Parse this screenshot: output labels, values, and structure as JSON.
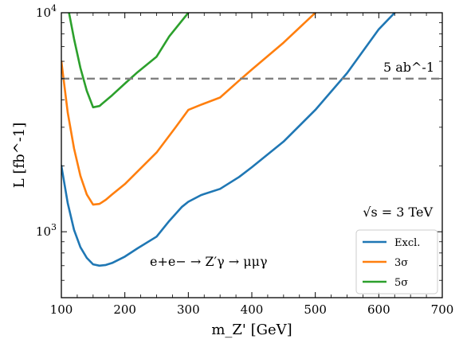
{
  "chart_data": {
    "type": "line",
    "x_label": "m_Z' [GeV]",
    "y_label": "L [fb^-1]",
    "x_range": [
      100,
      700
    ],
    "y_range": [
      500,
      10000
    ],
    "y_scale": "log",
    "x_ticks": [
      "100",
      "200",
      "300",
      "400",
      "500",
      "600",
      "700"
    ],
    "y_ticks": [
      {
        "value": 1000,
        "label": "10^3"
      },
      {
        "value": 10000,
        "label": "10^4"
      }
    ],
    "grid": false,
    "legend_position": "bottom-right",
    "reference_line": {
      "value": 5000,
      "label": "5 ab^-1",
      "color": "#808080"
    },
    "annotations": {
      "energy": "√s = 3 TeV",
      "process": "e+e− → Z′γ → μμγ"
    },
    "series": [
      {
        "name": "Excl.",
        "color": "#1f77b4",
        "x": [
          100,
          110,
          120,
          130,
          140,
          150,
          160,
          170,
          180,
          200,
          220,
          250,
          270,
          290,
          300,
          320,
          350,
          380,
          400,
          450,
          500,
          550,
          600,
          625
        ],
        "y": [
          2000,
          1350,
          1020,
          850,
          760,
          710,
          700,
          705,
          720,
          770,
          840,
          950,
          1120,
          1300,
          1370,
          1470,
          1570,
          1780,
          1970,
          2580,
          3600,
          5300,
          8400,
          10000
        ]
      },
      {
        "name": "3σ",
        "color": "#ff7f0e",
        "x": [
          100,
          110,
          120,
          130,
          140,
          150,
          160,
          170,
          180,
          200,
          250,
          280,
          300,
          320,
          350,
          380,
          400,
          450,
          500
        ],
        "y": [
          6000,
          3500,
          2400,
          1800,
          1480,
          1330,
          1340,
          1400,
          1480,
          1650,
          2300,
          3000,
          3600,
          3800,
          4100,
          4900,
          5500,
          7300,
          10000
        ]
      },
      {
        "name": "5σ",
        "color": "#2ca02c",
        "x": [
          112,
          120,
          130,
          140,
          150,
          160,
          180,
          200,
          220,
          250,
          270,
          300
        ],
        "y": [
          10000,
          7600,
          5600,
          4400,
          3700,
          3750,
          4200,
          4750,
          5350,
          6300,
          7800,
          10000
        ]
      }
    ]
  }
}
